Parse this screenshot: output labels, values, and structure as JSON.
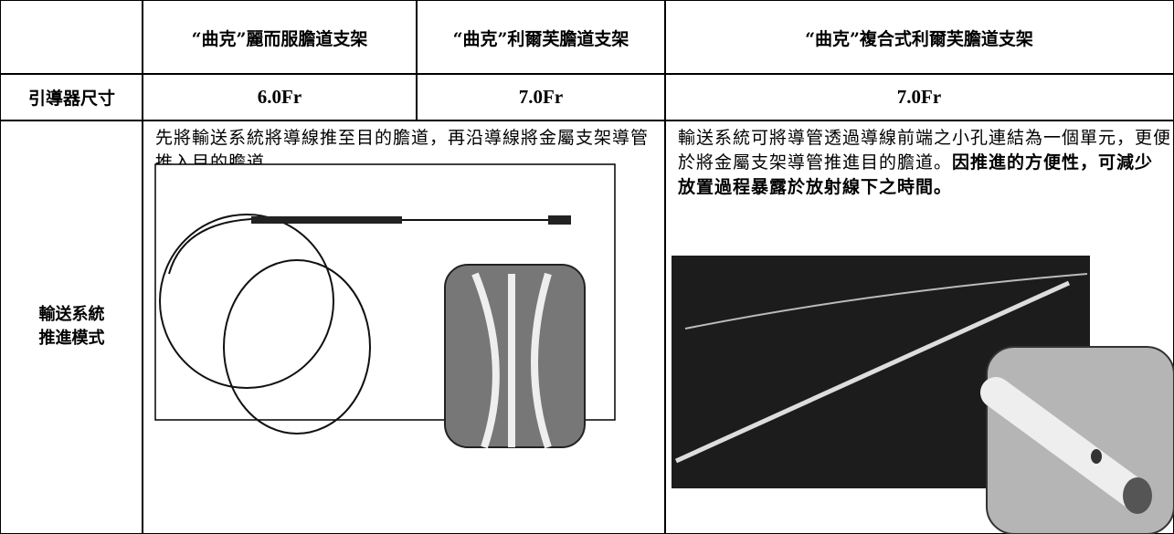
{
  "table": {
    "header": [
      "“曲克”麗而服膽道支架",
      "“曲克”利爾芙膽道支架",
      "“曲克”複合式利爾芙膽道支架"
    ],
    "rows": [
      {
        "label": [
          "引導器尺寸"
        ],
        "cells": [
          "6.0Fr",
          "7.0Fr",
          "7.0Fr"
        ]
      },
      {
        "label": [
          "輸送系統",
          "推進模式"
        ],
        "left_text": "先將輸送系統將導線推至目的膽道，再沿導線將金屬支架導管推入目的膽道。",
        "right_text": "輸送系統可將導管透過導線前端之小孔連結為一個單元，更便於將金屬支架導管推進目的膽道。",
        "right_bold": "因推進的方便性，可減少放置過程暴露於放射線下之時間。"
      }
    ]
  }
}
